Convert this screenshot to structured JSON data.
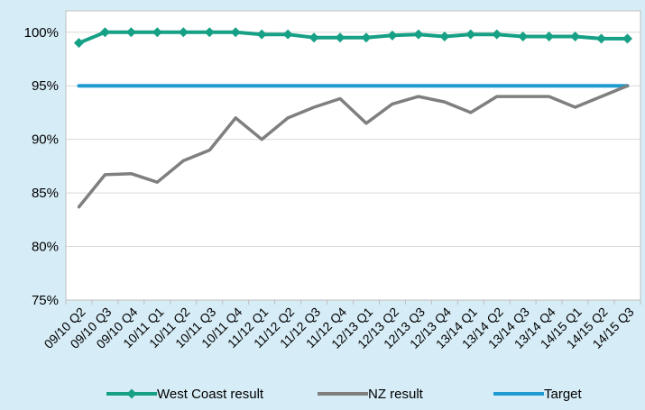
{
  "chart_data": {
    "type": "line",
    "categories": [
      "09/10 Q2",
      "09/10 Q3",
      "09/10 Q4",
      "10/11 Q1",
      "10/11 Q2",
      "10/11 Q3",
      "10/11 Q4",
      "11/12 Q1",
      "11/12 Q2",
      "11/12 Q3",
      "11/12 Q4",
      "12/13 Q1",
      "12/13 Q2",
      "12/13 Q3",
      "12/13 Q4",
      "13/14 Q1",
      "13/14 Q2",
      "13/14 Q3",
      "13/14 Q4",
      "14/15 Q1",
      "14/15 Q2",
      "14/15 Q3"
    ],
    "series": [
      {
        "name": "West Coast result",
        "color": "#16a085",
        "marker": "diamond",
        "values": [
          99.0,
          100,
          100,
          100,
          100,
          100,
          100,
          99.8,
          99.8,
          99.5,
          99.5,
          99.5,
          99.7,
          99.8,
          99.6,
          99.8,
          99.8,
          99.6,
          99.6,
          99.6,
          99.4,
          99.4
        ]
      },
      {
        "name": "NZ result",
        "color": "#7f7f7f",
        "marker": "none",
        "values": [
          83.7,
          86.7,
          86.8,
          86.0,
          88.0,
          89.0,
          92.0,
          90.0,
          92.0,
          93.0,
          93.8,
          91.5,
          93.3,
          94.0,
          93.5,
          92.5,
          94.0,
          94.0,
          94.0,
          93.0,
          94.0,
          95.0
        ]
      },
      {
        "name": "Target",
        "color": "#1f9bd1",
        "marker": "none",
        "values": [
          95,
          95,
          95,
          95,
          95,
          95,
          95,
          95,
          95,
          95,
          95,
          95,
          95,
          95,
          95,
          95,
          95,
          95,
          95,
          95,
          95,
          95
        ]
      }
    ],
    "y_ticks": [
      "75%",
      "80%",
      "85%",
      "90%",
      "95%",
      "100%"
    ],
    "ylim": [
      75,
      102
    ],
    "grid": true,
    "legend_position": "bottom",
    "title": "",
    "xlabel": "",
    "ylabel": ""
  }
}
